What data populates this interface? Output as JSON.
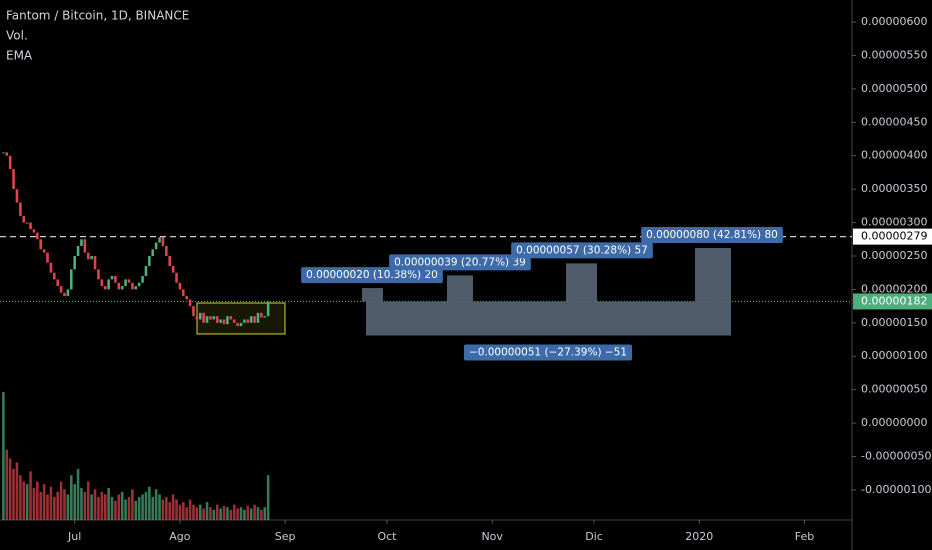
{
  "chart_data": {
    "type": "candlestick",
    "title": "Fantom / Bitcoin, 1D, BINANCE",
    "indicators": [
      "Vol.",
      "EMA"
    ],
    "x": [
      0,
      1,
      2,
      3,
      4,
      5,
      6,
      7,
      8,
      9,
      10,
      11,
      12,
      13,
      14,
      15,
      16,
      17,
      18,
      19,
      20,
      21,
      22,
      23,
      24,
      25,
      26,
      27,
      28,
      29,
      30,
      31,
      32,
      33,
      34,
      35,
      36,
      37,
      38,
      39,
      40,
      41,
      42,
      43,
      44,
      45,
      46,
      47,
      48,
      49,
      50,
      51,
      52,
      53,
      54,
      55,
      56,
      57,
      58,
      59,
      60,
      61,
      62,
      63,
      64,
      65,
      66,
      67,
      68,
      69,
      70,
      71,
      72,
      73,
      74,
      75,
      76,
      77,
      78
    ],
    "close": [
      4.05e-06,
      4e-06,
      3.8e-06,
      3.5e-06,
      3.3e-06,
      3.1e-06,
      3e-06,
      3e-06,
      2.9e-06,
      2.85e-06,
      2.75e-06,
      2.6e-06,
      2.55e-06,
      2.4e-06,
      2.25e-06,
      2.15e-06,
      2.05e-06,
      1.95e-06,
      1.9e-06,
      2e-06,
      2.3e-06,
      2.5e-06,
      2.65e-06,
      2.75e-06,
      2.55e-06,
      2.45e-06,
      2.5e-06,
      2.3e-06,
      2.15e-06,
      2.05e-06,
      2e-06,
      2.15e-06,
      2.2e-06,
      2.1e-06,
      2e-06,
      2.05e-06,
      2.15e-06,
      2.1e-06,
      2e-06,
      2.05e-06,
      2.1e-06,
      2.2e-06,
      2.35e-06,
      2.5e-06,
      2.6e-06,
      2.7e-06,
      2.78e-06,
      2.65e-06,
      2.5e-06,
      2.35e-06,
      2.25e-06,
      2.1e-06,
      2e-06,
      1.9e-06,
      1.85e-06,
      1.75e-06,
      1.6e-06,
      1.55e-06,
      1.65e-06,
      1.5e-06,
      1.6e-06,
      1.55e-06,
      1.6e-06,
      1.5e-06,
      1.55e-06,
      1.48e-06,
      1.6e-06,
      1.55e-06,
      1.5e-06,
      1.45e-06,
      1.5e-06,
      1.55e-06,
      1.5e-06,
      1.6e-06,
      1.5e-06,
      1.65e-06,
      1.58e-06,
      1.6e-06,
      1.82e-06
    ],
    "volume": [
      100,
      55,
      48,
      40,
      45,
      35,
      30,
      28,
      38,
      25,
      30,
      22,
      28,
      20,
      26,
      18,
      22,
      30,
      24,
      20,
      35,
      28,
      40,
      25,
      22,
      30,
      20,
      24,
      18,
      22,
      20,
      25,
      18,
      15,
      20,
      22,
      16,
      18,
      24,
      15,
      18,
      20,
      22,
      26,
      18,
      24,
      20,
      16,
      18,
      14,
      20,
      16,
      12,
      14,
      10,
      16,
      12,
      10,
      12,
      9,
      14,
      10,
      8,
      12,
      9,
      11,
      10,
      8,
      12,
      9,
      10,
      8,
      11,
      9,
      12,
      10,
      8,
      10,
      35
    ],
    "up_color": "#4caf7d",
    "down_color": "#e0434f",
    "xlim": [
      -1,
      250
    ],
    "xticks": [
      {
        "value": 21,
        "label": "Jul"
      },
      {
        "value": 52,
        "label": "Ago"
      },
      {
        "value": 83,
        "label": "Sep"
      },
      {
        "value": 113,
        "label": "Oct"
      },
      {
        "value": 144,
        "label": "Nov"
      },
      {
        "value": 174,
        "label": "Dic"
      },
      {
        "value": 205,
        "label": "2020"
      },
      {
        "value": 236,
        "label": "Feb"
      }
    ],
    "ylim": [
      -1.45e-06,
      6.33e-06
    ],
    "yticks": [
      {
        "value": 6e-06,
        "label": "0.00000600"
      },
      {
        "value": 5.5e-06,
        "label": "0.00000550"
      },
      {
        "value": 5e-06,
        "label": "0.00000500"
      },
      {
        "value": 4.5e-06,
        "label": "0.00000450"
      },
      {
        "value": 4e-06,
        "label": "0.00000400"
      },
      {
        "value": 3.5e-06,
        "label": "0.00000350"
      },
      {
        "value": 3e-06,
        "label": "0.00000300"
      },
      {
        "value": 2.5e-06,
        "label": "0.00000250"
      },
      {
        "value": 2e-06,
        "label": "0.00000200"
      },
      {
        "value": 1.5e-06,
        "label": "0.00000150"
      },
      {
        "value": 1e-06,
        "label": "0.00000100"
      },
      {
        "value": 5e-07,
        "label": "0.00000050"
      },
      {
        "value": 0,
        "label": "0.00000000"
      },
      {
        "value": -5e-07,
        "label": "-0.00000050"
      },
      {
        "value": -1e-06,
        "label": "-0.00000100"
      }
    ],
    "price_lines": [
      {
        "value": 2.79e-06,
        "label": "0.00000279",
        "style": "dashed",
        "color": "#cccccc"
      },
      {
        "value": 1.82e-06,
        "label": "0.00000182",
        "style": "dotted",
        "color": "#4caf7d"
      }
    ],
    "measures": [
      {
        "value": 2e-07,
        "label": "0.00000020 (10.38%) 20"
      },
      {
        "value": 3.9e-07,
        "label": "0.00000039 (20.77%) 39"
      },
      {
        "value": 5.7e-07,
        "label": "0.00000057 (30.28%) 57"
      },
      {
        "value": 8e-07,
        "label": "0.00000080 (42.81%) 80"
      },
      {
        "value": -5.1e-07,
        "label": "−0.00000051 (−27.39%) −51"
      }
    ]
  }
}
